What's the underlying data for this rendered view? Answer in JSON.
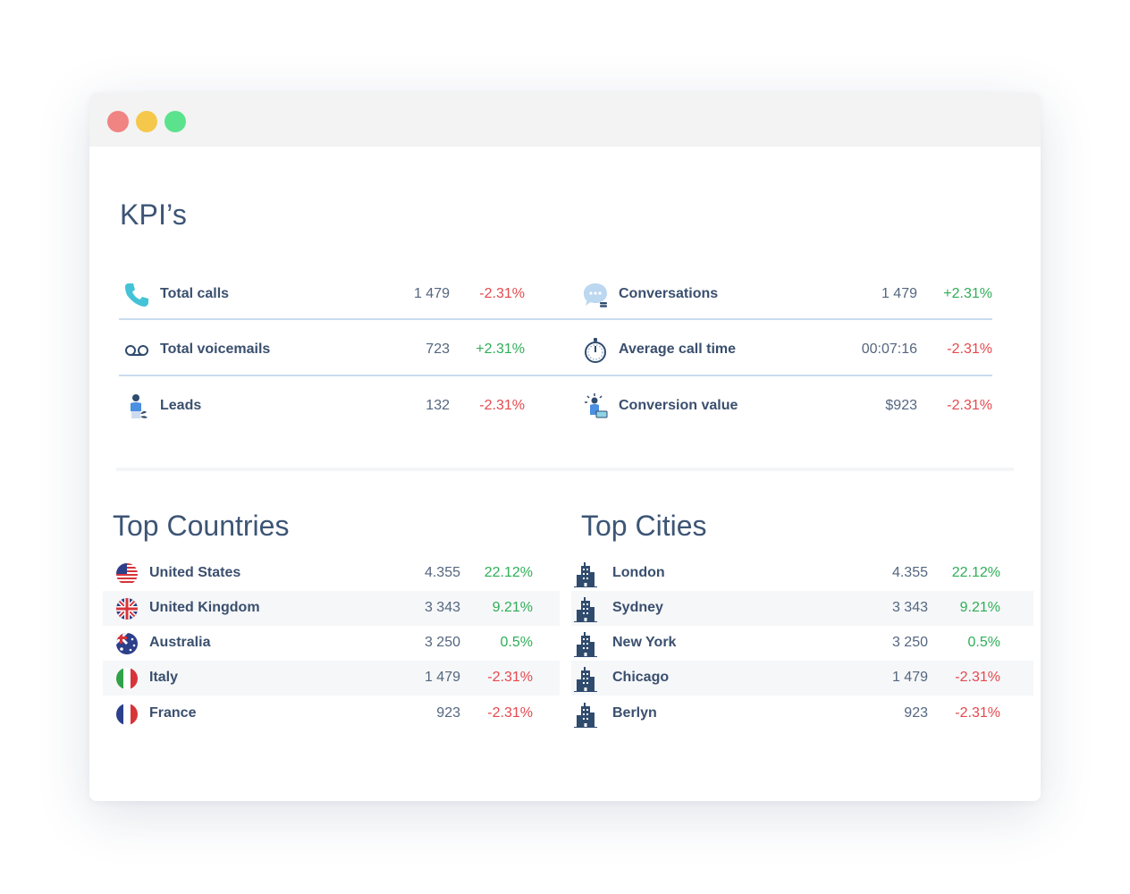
{
  "window": {
    "controls": {
      "close_color": "#f08482",
      "minimize_color": "#f5c84c",
      "maximize_color": "#5be28c"
    }
  },
  "kpis": {
    "title": "KPI’s",
    "items": [
      {
        "icon": "phone-icon",
        "label": "Total calls",
        "value": "1 479",
        "delta": "-2.31%",
        "trend": "neg"
      },
      {
        "icon": "chat-bubble-icon",
        "label": "Conversations",
        "value": "1 479",
        "delta": "+2.31%",
        "trend": "pos"
      },
      {
        "icon": "voicemail-icon",
        "label": "Total voicemails",
        "value": "723",
        "delta": "+2.31%",
        "trend": "pos"
      },
      {
        "icon": "stopwatch-icon",
        "label": "Average call time",
        "value": "00:07:16",
        "delta": "-2.31%",
        "trend": "neg"
      },
      {
        "icon": "lead-person-icon",
        "label": "Leads",
        "value": "132",
        "delta": "-2.31%",
        "trend": "neg"
      },
      {
        "icon": "conversion-person-icon",
        "label": "Conversion value",
        "value": "$923",
        "delta": "-2.31%",
        "trend": "neg"
      }
    ]
  },
  "top_countries": {
    "title": "Top Countries",
    "rows": [
      {
        "flag": "us-flag-icon",
        "name": "United States",
        "value": "4.355",
        "pct": "22.12%",
        "trend": "pos"
      },
      {
        "flag": "uk-flag-icon",
        "name": "United Kingdom",
        "value": "3 343",
        "pct": "9.21%",
        "trend": "pos"
      },
      {
        "flag": "australia-flag-icon",
        "name": "Australia",
        "value": "3 250",
        "pct": "0.5%",
        "trend": "pos"
      },
      {
        "flag": "italy-flag-icon",
        "name": "Italy",
        "value": "1 479",
        "pct": "-2.31%",
        "trend": "neg"
      },
      {
        "flag": "france-flag-icon",
        "name": "France",
        "value": "923",
        "pct": "-2.31%",
        "trend": "neg"
      }
    ]
  },
  "top_cities": {
    "title": "Top Cities",
    "rows": [
      {
        "icon": "city-building-icon",
        "name": "London",
        "value": "4.355",
        "pct": "22.12%",
        "trend": "pos"
      },
      {
        "icon": "city-building-icon",
        "name": "Sydney",
        "value": "3 343",
        "pct": "9.21%",
        "trend": "pos"
      },
      {
        "icon": "city-building-icon",
        "name": "New York",
        "value": "3 250",
        "pct": "0.5%",
        "trend": "pos"
      },
      {
        "icon": "city-building-icon",
        "name": "Chicago",
        "value": "1 479",
        "pct": "-2.31%",
        "trend": "neg"
      },
      {
        "icon": "city-building-icon",
        "name": "Berlyn",
        "value": "923",
        "pct": "-2.31%",
        "trend": "neg"
      }
    ]
  },
  "colors": {
    "positive": "#2fae57",
    "negative": "#e5484d",
    "accent": "#4aa6d9",
    "divider": "#c9dcef"
  }
}
